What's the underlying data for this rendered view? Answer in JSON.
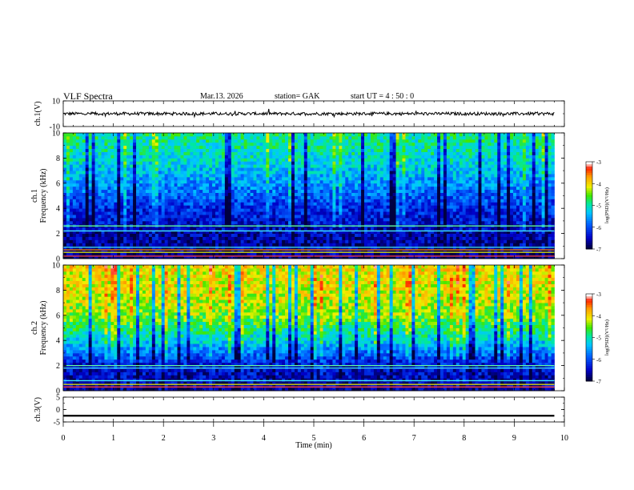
{
  "header": {
    "title": "VLF  Spectra",
    "date": "Mar.13. 2026",
    "station": "station= GAK",
    "start": "start  UT  =    4  : 50 : 0"
  },
  "chart_data": [
    {
      "type": "line",
      "panel": "ch1-waveform",
      "ylabel": "ch.1(V)",
      "xlim": [
        0,
        10
      ],
      "ylim": [
        -10,
        10
      ],
      "yticks": [
        -10,
        10
      ],
      "series": [
        {
          "x_range": [
            0,
            9.8
          ],
          "level": 0,
          "amplitude": 1.2
        }
      ]
    },
    {
      "type": "heatmap",
      "panel": "ch1-spectrogram",
      "ylabel": "ch.1\nFrequency  (kHz)",
      "xlim": [
        0,
        10
      ],
      "ylim": [
        0,
        10
      ],
      "yticks": [
        0,
        2,
        4,
        6,
        8,
        10
      ],
      "colorbar": {
        "label": "log(PSD)(V²/Hz)",
        "range": [
          -7,
          -3
        ],
        "ticks": [
          -3,
          -4,
          -5,
          -6,
          -7
        ]
      },
      "typical_psd": [
        -6.8,
        -6.6,
        -6.2,
        -5.6,
        -5.1,
        -4.9
      ]
    },
    {
      "type": "heatmap",
      "panel": "ch2-spectrogram",
      "ylabel": "ch.2\nFrequency  (kHz)",
      "xlim": [
        0,
        10
      ],
      "ylim": [
        0,
        10
      ],
      "yticks": [
        0,
        2,
        4,
        6,
        8,
        10
      ],
      "colorbar": {
        "label": "log(PSD)(V²/Hz)",
        "range": [
          -7,
          -3
        ],
        "ticks": [
          -3,
          -4,
          -5,
          -6,
          -7
        ]
      },
      "typical_psd": [
        -6.7,
        -6.4,
        -5.2,
        -4.4,
        -4.1,
        -4.0
      ]
    },
    {
      "type": "line",
      "panel": "ch3-waveform",
      "ylabel": "ch.3(V)",
      "xlabel": "Time  (min)",
      "xlim": [
        0,
        10
      ],
      "ylim": [
        -5,
        5
      ],
      "yticks": [
        -5,
        0,
        5
      ],
      "xticks": [
        0,
        1,
        2,
        3,
        4,
        5,
        6,
        7,
        8,
        9,
        10
      ],
      "series": [
        {
          "x_range": [
            0,
            9.8
          ],
          "level": -2.5
        }
      ]
    }
  ],
  "colors": {
    "text": "#000000",
    "palette": [
      "#000040",
      "#0000c8",
      "#0060ff",
      "#00c8ff",
      "#00e8a0",
      "#40e800",
      "#f0f000",
      "#ffa000",
      "#ff2000",
      "#ffffff"
    ]
  }
}
